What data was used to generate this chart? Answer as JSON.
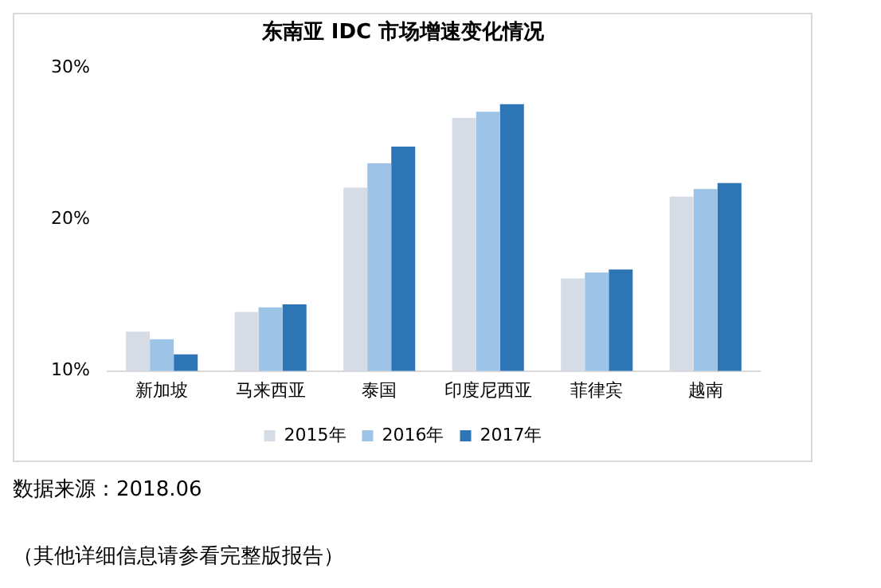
{
  "chart_data": {
    "type": "bar",
    "title": "东南亚 IDC 市场增速变化情况",
    "categories": [
      "新加坡",
      "马来西亚",
      "泰国",
      "印度尼西亚",
      "菲律宾",
      "越南"
    ],
    "series": [
      {
        "name": "2015年",
        "color": "#d6dce5",
        "values": [
          12.6,
          13.9,
          22.1,
          26.7,
          16.1,
          21.5
        ]
      },
      {
        "name": "2016年",
        "color": "#9dc3e6",
        "values": [
          12.1,
          14.2,
          23.7,
          27.1,
          16.5,
          22.0
        ]
      },
      {
        "name": "2017年",
        "color": "#2e75b6",
        "values": [
          11.1,
          14.4,
          24.8,
          27.6,
          16.7,
          22.4
        ]
      }
    ],
    "ylim": [
      10,
      30
    ],
    "yticks": [
      {
        "value": 10,
        "label": "10%"
      },
      {
        "value": 20,
        "label": "20%"
      },
      {
        "value": 30,
        "label": "30%"
      }
    ],
    "grid": false,
    "legend": "bottom",
    "annotations": [
      "数据来源：2018.06",
      "（其他详细信息请参看完整版报告）"
    ]
  }
}
